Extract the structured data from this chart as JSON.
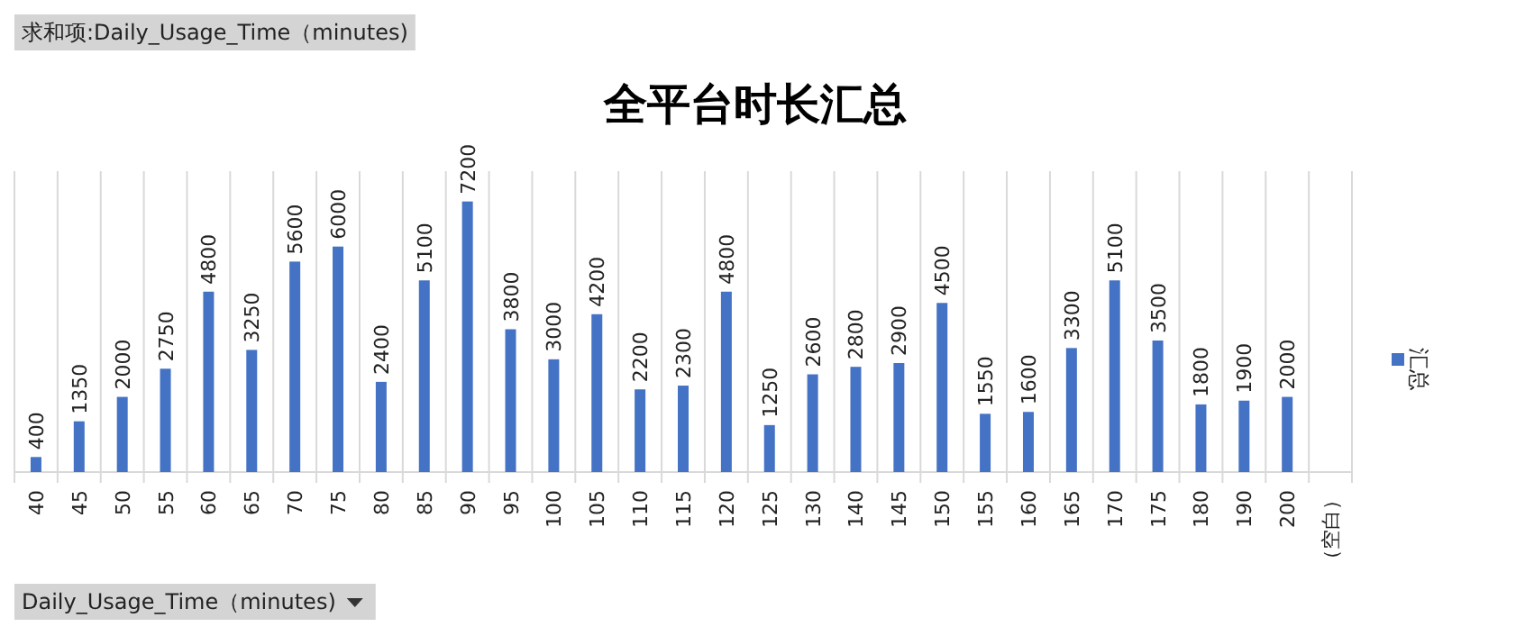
{
  "chart_data": {
    "type": "bar",
    "title": "全平台时长汇总",
    "categories": [
      "40",
      "45",
      "50",
      "55",
      "60",
      "65",
      "70",
      "75",
      "80",
      "85",
      "90",
      "95",
      "100",
      "105",
      "110",
      "115",
      "120",
      "125",
      "130",
      "140",
      "145",
      "150",
      "155",
      "160",
      "165",
      "170",
      "175",
      "180",
      "190",
      "200",
      "（空白）"
    ],
    "series": [
      {
        "name": "汇总",
        "color": "#4472c4",
        "values": [
          400,
          1350,
          2000,
          2750,
          4800,
          3250,
          5600,
          6000,
          2400,
          5100,
          7200,
          3800,
          3000,
          4200,
          2200,
          2300,
          4800,
          1250,
          2600,
          2800,
          2900,
          4500,
          1550,
          1600,
          3300,
          5100,
          3500,
          1800,
          1900,
          2000,
          null
        ]
      }
    ],
    "data_labels": true,
    "grid": "x",
    "legend": "right",
    "annotations": [
      "求和项:Daily_Usage_Time（minutes)",
      "Daily_Usage_Time（minutes)"
    ]
  }
}
